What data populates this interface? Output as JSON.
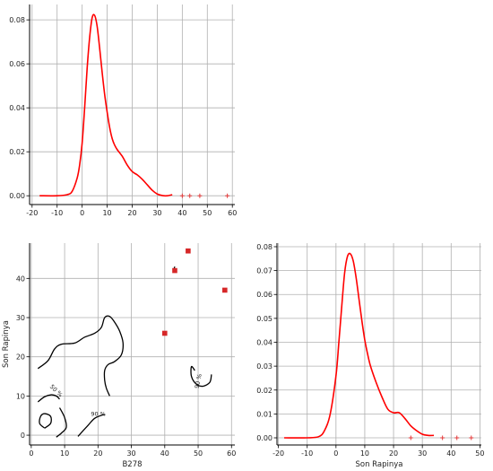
{
  "chart_data": [
    {
      "id": "density_b278",
      "type": "line",
      "title": "",
      "xlabel": "",
      "ylabel": "",
      "xlim": [
        -21,
        61
      ],
      "ylim": [
        -0.004,
        0.087
      ],
      "xticks": [
        -20,
        -10,
        0,
        10,
        20,
        30,
        40,
        50,
        60
      ],
      "yticks": [
        0.0,
        0.02,
        0.04,
        0.06,
        0.08
      ],
      "ytick_format": "2",
      "grid": true,
      "line_color": "#ff0000",
      "series": [
        {
          "x": [
            -17,
            -10,
            -6,
            -4,
            -2,
            -1,
            0,
            1,
            2,
            3,
            4,
            5,
            6,
            7,
            8,
            9,
            10,
            11,
            12,
            13,
            14,
            16,
            18,
            20,
            22,
            24,
            26,
            28,
            30,
            32,
            34,
            36
          ],
          "y": [
            0.0,
            0.0,
            0.0005,
            0.002,
            0.008,
            0.014,
            0.024,
            0.04,
            0.058,
            0.072,
            0.081,
            0.082,
            0.077,
            0.067,
            0.056,
            0.046,
            0.038,
            0.031,
            0.026,
            0.023,
            0.021,
            0.018,
            0.014,
            0.011,
            0.0095,
            0.0075,
            0.005,
            0.0025,
            0.0008,
            0.0001,
            0.0,
            0.0005
          ]
        }
      ],
      "rug": {
        "marker": "+",
        "color": "#e23a3a",
        "x": [
          40,
          43,
          47,
          58
        ],
        "y": [
          0,
          0,
          0,
          0
        ]
      }
    },
    {
      "id": "contour_scatter",
      "type": "scatter",
      "title": "",
      "xlabel": "B278",
      "ylabel": "Son Rapinya",
      "xlim": [
        -0.5,
        61
      ],
      "ylim": [
        -2.5,
        49
      ],
      "xticks": [
        0,
        10,
        20,
        30,
        40,
        50,
        60
      ],
      "yticks": [
        0,
        10,
        20,
        30,
        40
      ],
      "grid": true,
      "points": {
        "marker": "square",
        "color": "#d62728",
        "x": [
          40,
          43,
          47,
          58
        ],
        "y": [
          26,
          42,
          47,
          37
        ]
      },
      "contours": [
        {
          "label": "",
          "path": [
            [
              2,
              17
            ],
            [
              5,
              19
            ],
            [
              7,
              22
            ],
            [
              9,
              23.2
            ],
            [
              13,
              23.5
            ],
            [
              16,
              25
            ],
            [
              19,
              26
            ],
            [
              21,
              27.5
            ],
            [
              22,
              30
            ],
            [
              23.5,
              30.3
            ],
            [
              25,
              28.8
            ],
            [
              26.5,
              26.5
            ],
            [
              27.5,
              23.5
            ],
            [
              27,
              20.5
            ],
            [
              25,
              18.8
            ],
            [
              23,
              18
            ],
            [
              22,
              16.5
            ],
            [
              22,
              14
            ],
            [
              22.5,
              12
            ],
            [
              23.5,
              10
            ]
          ]
        },
        {
          "label": "50 %",
          "path": [
            [
              2,
              8.5
            ],
            [
              4,
              9.8
            ],
            [
              6,
              10.3
            ],
            [
              7.5,
              10
            ],
            [
              8.5,
              9.2
            ]
          ]
        },
        {
          "label": "",
          "path": [
            [
              8.5,
              7
            ],
            [
              10,
              4.5
            ],
            [
              10.5,
              2
            ],
            [
              9,
              0.5
            ],
            [
              7.5,
              -0.5
            ]
          ]
        },
        {
          "label": "",
          "path": [
            [
              4,
              1.8
            ],
            [
              5.8,
              3
            ],
            [
              5.8,
              4.8
            ],
            [
              4,
              5.5
            ],
            [
              2.8,
              4.8
            ],
            [
              2.5,
              3
            ],
            [
              4,
              1.8
            ]
          ]
        },
        {
          "label": "90 %",
          "path": [
            [
              14,
              -0.3
            ],
            [
              17,
              2.5
            ],
            [
              19,
              4.3
            ],
            [
              21.5,
              5.2
            ],
            [
              22,
              5.2
            ]
          ]
        },
        {
          "label": "90 %",
          "path": [
            [
              49,
              16.5
            ],
            [
              48,
              17.5
            ],
            [
              48,
              15
            ],
            [
              49.5,
              13
            ],
            [
              51.5,
              12.5
            ],
            [
              53.5,
              13.5
            ],
            [
              54,
              15.5
            ]
          ]
        },
        {
          "label": "",
          "path": [
            [
              42.8,
              42.5
            ],
            [
              43,
              43
            ]
          ]
        }
      ]
    },
    {
      "id": "density_son_rapinya",
      "type": "line",
      "title": "",
      "xlabel": "Son Rapinya",
      "ylabel": "",
      "xlim": [
        -20.5,
        50.5
      ],
      "ylim": [
        -0.003,
        0.0815
      ],
      "xticks": [
        -20,
        -10,
        0,
        10,
        20,
        30,
        40,
        50
      ],
      "yticks": [
        0.0,
        0.01,
        0.02,
        0.03,
        0.04,
        0.05,
        0.06,
        0.07,
        0.08
      ],
      "ytick_format": "2",
      "grid": true,
      "line_color": "#ff0000",
      "series": [
        {
          "x": [
            -18,
            -10,
            -6,
            -4,
            -2,
            0,
            1,
            2,
            3,
            4,
            5,
            6,
            7,
            8,
            9,
            10,
            11,
            12,
            14,
            16,
            18,
            20,
            22,
            24,
            26,
            28,
            30,
            32,
            34
          ],
          "y": [
            0.0,
            0.0,
            0.0005,
            0.003,
            0.01,
            0.026,
            0.04,
            0.055,
            0.069,
            0.076,
            0.077,
            0.074,
            0.067,
            0.058,
            0.049,
            0.041,
            0.035,
            0.03,
            0.023,
            0.017,
            0.012,
            0.0105,
            0.0105,
            0.008,
            0.005,
            0.003,
            0.0015,
            0.001,
            0.001
          ]
        }
      ],
      "rug": {
        "marker": "+",
        "color": "#e23a3a",
        "x": [
          26,
          37,
          42,
          47
        ],
        "y": [
          0,
          0,
          0,
          0
        ]
      }
    }
  ]
}
